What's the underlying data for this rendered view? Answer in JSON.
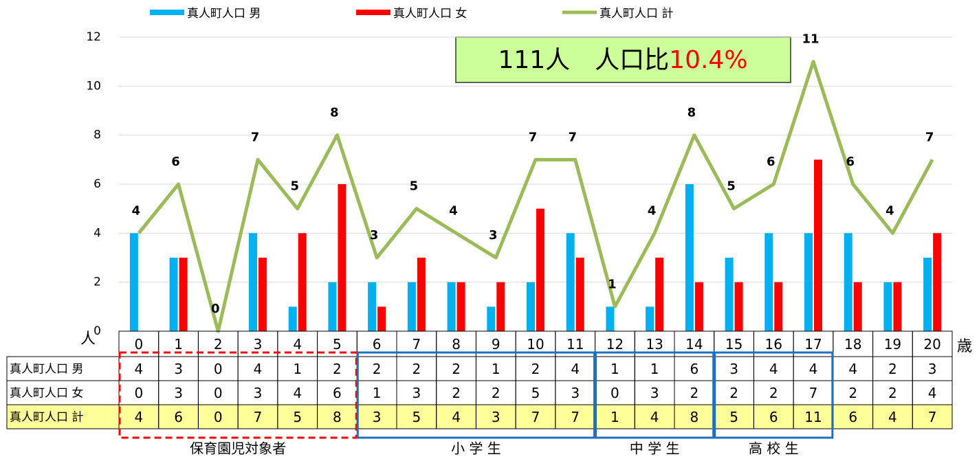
{
  "chart_data": {
    "type": "bar_line_table",
    "categories": [
      "0",
      "1",
      "2",
      "3",
      "4",
      "5",
      "6",
      "7",
      "8",
      "9",
      "10",
      "11",
      "12",
      "13",
      "14",
      "15",
      "16",
      "17",
      "18",
      "19",
      "20"
    ],
    "series": [
      {
        "name": "真人町人口 男",
        "color": "#00b0f0",
        "kind": "bar",
        "values": [
          4,
          3,
          0,
          4,
          1,
          2,
          2,
          2,
          2,
          1,
          2,
          4,
          1,
          1,
          6,
          3,
          4,
          4,
          4,
          2,
          3
        ]
      },
      {
        "name": "真人町人口 女",
        "color": "#ff0000",
        "kind": "bar",
        "values": [
          0,
          3,
          0,
          3,
          4,
          6,
          1,
          3,
          2,
          2,
          5,
          3,
          0,
          3,
          2,
          2,
          2,
          7,
          2,
          2,
          4
        ]
      },
      {
        "name": "真人町人口 計",
        "color": "#9bbb59",
        "kind": "line",
        "values": [
          4,
          6,
          0,
          7,
          5,
          8,
          3,
          5,
          4,
          3,
          7,
          7,
          1,
          4,
          8,
          5,
          6,
          11,
          6,
          4,
          7
        ]
      }
    ],
    "ylim": [
      0,
      12
    ],
    "yticks": [
      0,
      2,
      4,
      6,
      8,
      10,
      12
    ],
    "grid": true,
    "y_unit": "人",
    "x_unit": "歳",
    "annotation": {
      "text": "111人　人口比",
      "highlight": "10.4%",
      "highlight_color": "#ff0000"
    },
    "groups": [
      {
        "label": "保育園児対象者",
        "from": 0,
        "to": 5,
        "color": "#ff0000",
        "dashed": true
      },
      {
        "label": "小 学 生",
        "from": 6,
        "to": 11,
        "color": "#1f6fbf",
        "dashed": false
      },
      {
        "label": "中 学 生",
        "from": 12,
        "to": 14,
        "color": "#1f6fbf",
        "dashed": false
      },
      {
        "label": "高 校 生",
        "from": 15,
        "to": 17,
        "color": "#1f6fbf",
        "dashed": false
      }
    ]
  }
}
